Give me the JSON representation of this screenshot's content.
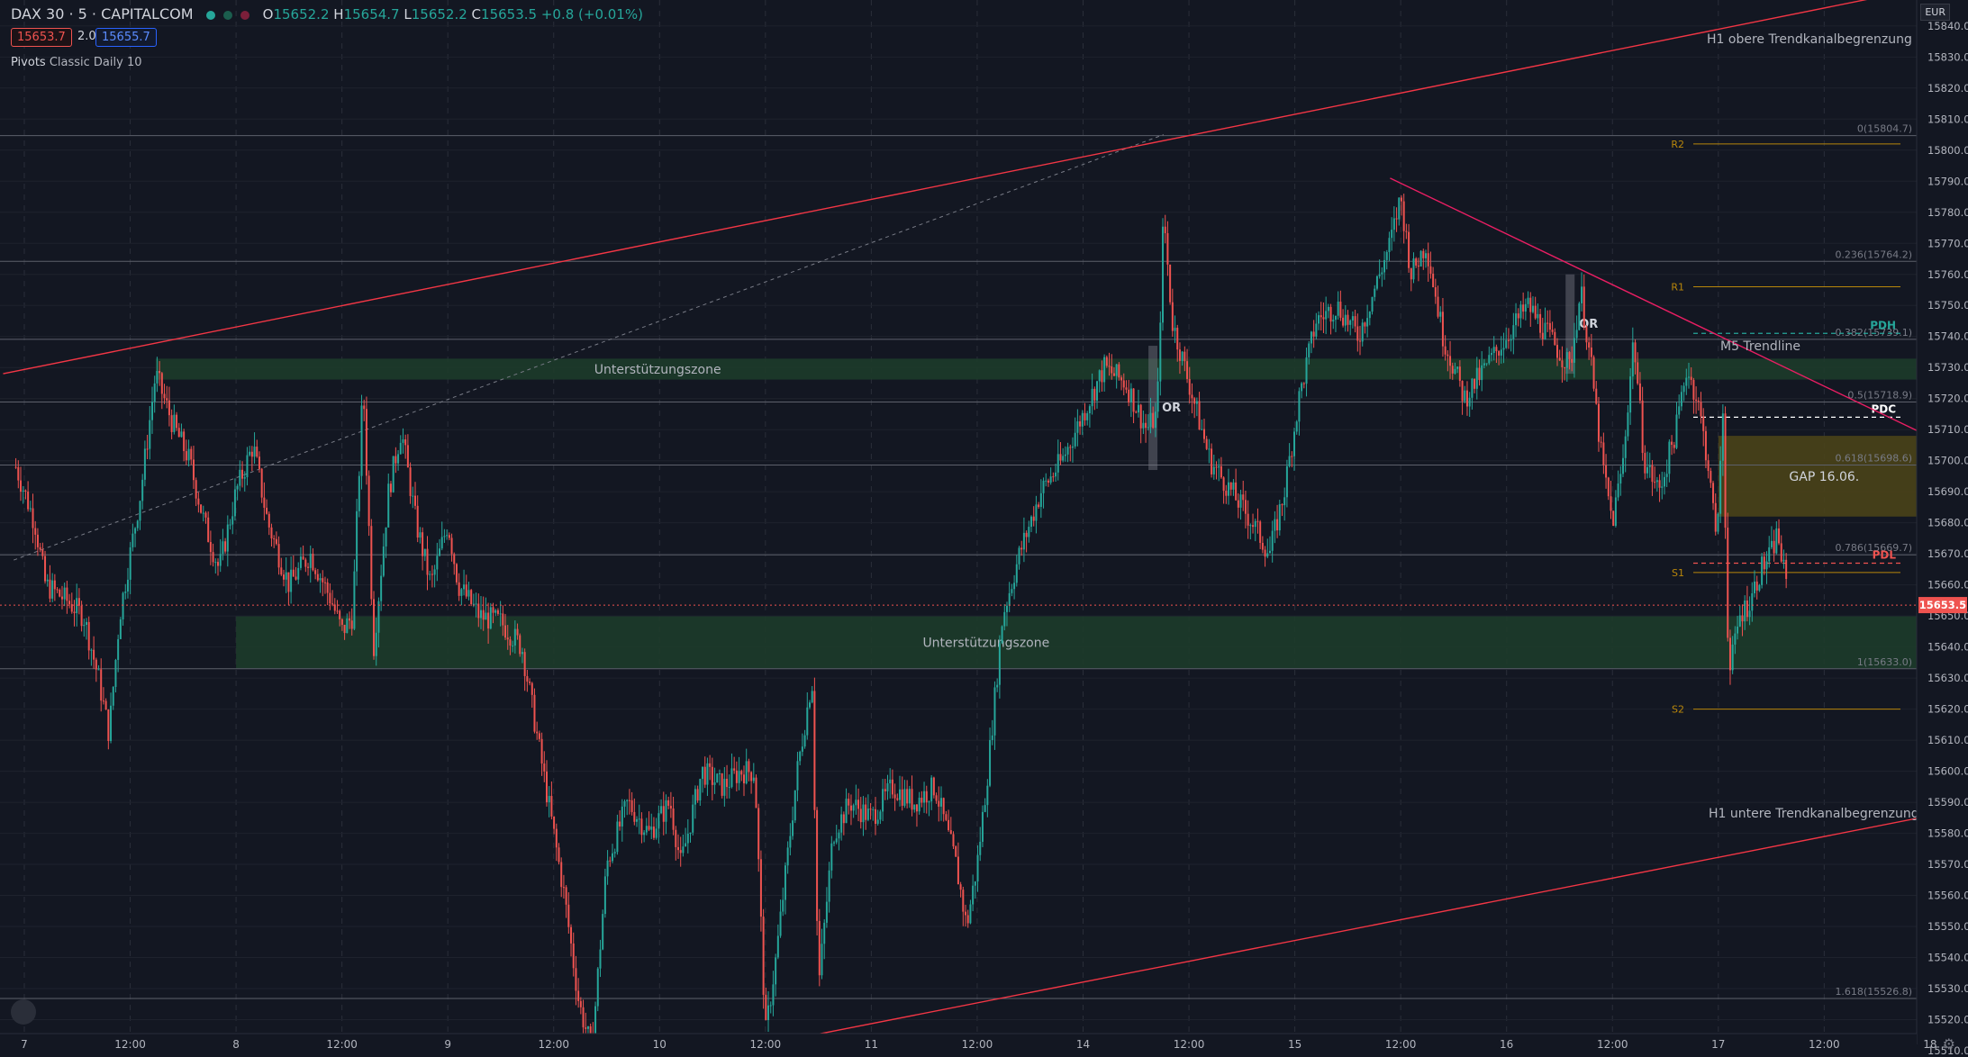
{
  "header": {
    "symbol": "DAX 30 · 5 · CAPITALCOM",
    "o_label": "O",
    "o_value": "15652.2",
    "h_label": "H",
    "h_value": "15654.7",
    "l_label": "L",
    "l_value": "15652.2",
    "c_label": "C",
    "c_value": "15653.5",
    "change": "+0.8 (+0.01%)",
    "sell_price": "15653.7",
    "spread": "2.0",
    "buy_price": "15655.7",
    "indicator_name": "Pivots",
    "indicator_params": "Classic Daily 10",
    "currency": "EUR"
  },
  "colors": {
    "background": "#131722",
    "up": "#26a69a",
    "down": "#ef5350",
    "trend_red": "#f23645",
    "trend_pink": "#e91e63",
    "zone_green": "#1b3a2b",
    "gap_olive": "#4a4318",
    "pivot_orange": "#b8860b"
  },
  "chart_data": {
    "type": "candlestick",
    "symbol": "DAX 30",
    "interval": "5",
    "ylim": [
      15510,
      15850
    ],
    "y_ticks": [
      "15510.0",
      "15520.0",
      "15530.0",
      "15540.0",
      "15550.0",
      "15560.0",
      "15570.0",
      "15580.0",
      "15590.0",
      "15600.0",
      "15610.0",
      "15620.0",
      "15630.0",
      "15640.0",
      "15650.0",
      "15660.0",
      "15670.0",
      "15680.0",
      "15690.0",
      "15700.0",
      "15710.0",
      "15720.0",
      "15730.0",
      "15740.0",
      "15750.0",
      "15760.0",
      "15770.0",
      "15780.0",
      "15790.0",
      "15800.0",
      "15810.0",
      "15820.0",
      "15830.0",
      "15840.0"
    ],
    "x_ticks": [
      {
        "label": "7",
        "t": 0
      },
      {
        "label": "12:00",
        "t": 0.5
      },
      {
        "label": "8",
        "t": 1
      },
      {
        "label": "12:00",
        "t": 1.5
      },
      {
        "label": "9",
        "t": 2
      },
      {
        "label": "12:00",
        "t": 2.5
      },
      {
        "label": "10",
        "t": 3
      },
      {
        "label": "12:00",
        "t": 3.5
      },
      {
        "label": "11",
        "t": 4
      },
      {
        "label": "12:00",
        "t": 4.5
      },
      {
        "label": "14",
        "t": 5
      },
      {
        "label": "12:00",
        "t": 5.5
      },
      {
        "label": "15",
        "t": 6
      },
      {
        "label": "12:00",
        "t": 6.5
      },
      {
        "label": "16",
        "t": 7
      },
      {
        "label": "12:00",
        "t": 7.5
      },
      {
        "label": "17",
        "t": 8
      },
      {
        "label": "12:00",
        "t": 8.5
      },
      {
        "label": "18",
        "t": 9
      }
    ],
    "last_price": "15653.5",
    "price_path": [
      [
        -0.05,
        15700
      ],
      [
        0.05,
        15680
      ],
      [
        0.1,
        15660
      ],
      [
        0.2,
        15655
      ],
      [
        0.28,
        15650
      ],
      [
        0.35,
        15630
      ],
      [
        0.4,
        15612
      ],
      [
        0.45,
        15650
      ],
      [
        0.5,
        15670
      ],
      [
        0.55,
        15690
      ],
      [
        0.62,
        15728
      ],
      [
        0.7,
        15712
      ],
      [
        0.78,
        15700
      ],
      [
        0.85,
        15680
      ],
      [
        0.92,
        15665
      ],
      [
        1.0,
        15690
      ],
      [
        1.08,
        15705
      ],
      [
        1.15,
        15680
      ],
      [
        1.25,
        15660
      ],
      [
        1.35,
        15670
      ],
      [
        1.45,
        15655
      ],
      [
        1.5,
        15645
      ],
      [
        1.55,
        15650
      ],
      [
        1.6,
        15725
      ],
      [
        1.65,
        15640
      ],
      [
        1.72,
        15690
      ],
      [
        1.78,
        15710
      ],
      [
        1.85,
        15680
      ],
      [
        1.92,
        15660
      ],
      [
        2.0,
        15680
      ],
      [
        2.05,
        15660
      ],
      [
        2.15,
        15650
      ],
      [
        2.25,
        15648
      ],
      [
        2.35,
        15640
      ],
      [
        2.45,
        15600
      ],
      [
        2.55,
        15560
      ],
      [
        2.62,
        15525
      ],
      [
        2.68,
        15510
      ],
      [
        2.75,
        15570
      ],
      [
        2.85,
        15590
      ],
      [
        2.95,
        15580
      ],
      [
        3.05,
        15590
      ],
      [
        3.1,
        15570
      ],
      [
        3.2,
        15600
      ],
      [
        3.3,
        15595
      ],
      [
        3.38,
        15600
      ],
      [
        3.45,
        15600
      ],
      [
        3.5,
        15515
      ],
      [
        3.55,
        15540
      ],
      [
        3.65,
        15600
      ],
      [
        3.72,
        15630
      ],
      [
        3.75,
        15530
      ],
      [
        3.82,
        15580
      ],
      [
        3.9,
        15590
      ],
      [
        4.0,
        15585
      ],
      [
        4.1,
        15595
      ],
      [
        4.2,
        15590
      ],
      [
        4.3,
        15595
      ],
      [
        4.4,
        15570
      ],
      [
        4.45,
        15550
      ],
      [
        4.5,
        15570
      ],
      [
        4.55,
        15600
      ],
      [
        4.62,
        15650
      ],
      [
        4.7,
        15670
      ],
      [
        4.8,
        15690
      ],
      [
        4.9,
        15700
      ],
      [
        5.0,
        15715
      ],
      [
        5.1,
        15730
      ],
      [
        5.2,
        15725
      ],
      [
        5.3,
        15710
      ],
      [
        5.35,
        15715
      ],
      [
        5.38,
        15780
      ],
      [
        5.42,
        15745
      ],
      [
        5.5,
        15725
      ],
      [
        5.6,
        15700
      ],
      [
        5.7,
        15690
      ],
      [
        5.8,
        15680
      ],
      [
        5.88,
        15670
      ],
      [
        5.95,
        15690
      ],
      [
        6.02,
        15720
      ],
      [
        6.1,
        15745
      ],
      [
        6.2,
        15750
      ],
      [
        6.3,
        15740
      ],
      [
        6.4,
        15760
      ],
      [
        6.45,
        15770
      ],
      [
        6.5,
        15785
      ],
      [
        6.55,
        15760
      ],
      [
        6.62,
        15770
      ],
      [
        6.7,
        15740
      ],
      [
        6.8,
        15720
      ],
      [
        6.9,
        15730
      ],
      [
        7.0,
        15740
      ],
      [
        7.1,
        15750
      ],
      [
        7.2,
        15740
      ],
      [
        7.3,
        15730
      ],
      [
        7.35,
        15755
      ],
      [
        7.4,
        15730
      ],
      [
        7.45,
        15700
      ],
      [
        7.5,
        15680
      ],
      [
        7.55,
        15700
      ],
      [
        7.6,
        15740
      ],
      [
        7.65,
        15700
      ],
      [
        7.72,
        15690
      ],
      [
        7.8,
        15710
      ],
      [
        7.85,
        15730
      ],
      [
        7.9,
        15720
      ],
      [
        7.95,
        15700
      ],
      [
        7.98,
        15680
      ],
      [
        8.0,
        15680
      ],
      [
        8.02,
        15720
      ],
      [
        8.05,
        15630
      ],
      [
        8.1,
        15650
      ],
      [
        8.15,
        15655
      ],
      [
        8.2,
        15665
      ],
      [
        8.25,
        15670
      ],
      [
        8.28,
        15677
      ],
      [
        8.3,
        15668
      ],
      [
        8.32,
        15660
      ],
      [
        8.33,
        15653.5
      ]
    ],
    "zones": [
      {
        "label": "Unterstützungszone",
        "t0": 0.62,
        "t1": 9.02,
        "low": 15727,
        "high": 15732
      },
      {
        "label": "Unterstützungszone",
        "t0": 1.0,
        "t1": 9.02,
        "low": 15634,
        "high": 15649
      }
    ],
    "gap": {
      "label": "GAP 16.06.",
      "t0": 8.0,
      "t1": 9.0,
      "low": 15682,
      "high": 15708
    },
    "fib_levels": [
      {
        "label": "0(15804.7)",
        "price": 15804.7
      },
      {
        "label": "0.236(15764.2)",
        "price": 15764.2
      },
      {
        "label": "0.382(15739.1)",
        "price": 15739.1
      },
      {
        "label": "0.5(15718.9)",
        "price": 15718.9
      },
      {
        "label": "0.618(15698.6)",
        "price": 15698.6
      },
      {
        "label": "0.786(15669.7)",
        "price": 15669.7
      },
      {
        "label": "1(15633.0)",
        "price": 15633.0
      },
      {
        "label": "1.618(15526.8)",
        "price": 15526.8
      }
    ],
    "pivots": [
      {
        "label": "R2",
        "price": 15802
      },
      {
        "label": "R1",
        "price": 15756
      },
      {
        "label": "S1",
        "price": 15664
      },
      {
        "label": "S2",
        "price": 15620
      }
    ],
    "day_levels": [
      {
        "label": "PDH",
        "price": 15741,
        "color": "#26a69a"
      },
      {
        "label": "PDC",
        "price": 15714,
        "color": "#ffffff"
      },
      {
        "label": "PDL",
        "price": 15667,
        "color": "#ef5350"
      }
    ],
    "or_labels": [
      {
        "label": "OR",
        "t": 5.33,
        "low": 15697,
        "high": 15737
      },
      {
        "label": "OR",
        "t": 7.3,
        "low": 15728,
        "high": 15760
      }
    ],
    "trendlines": [
      {
        "label": "H1 obere Trendkanalbegrenzung",
        "p1": [
          -0.1,
          15728
        ],
        "p2": [
          9.1,
          15854
        ]
      },
      {
        "label": "H1 untere Trendkanalbegrenzung",
        "p1": [
          3.35,
          15510
        ],
        "p2": [
          9.1,
          15587
        ]
      },
      {
        "label": "M5 Trendline",
        "p1": [
          6.45,
          15791
        ],
        "p2": [
          9.02,
          15707
        ]
      }
    ]
  }
}
